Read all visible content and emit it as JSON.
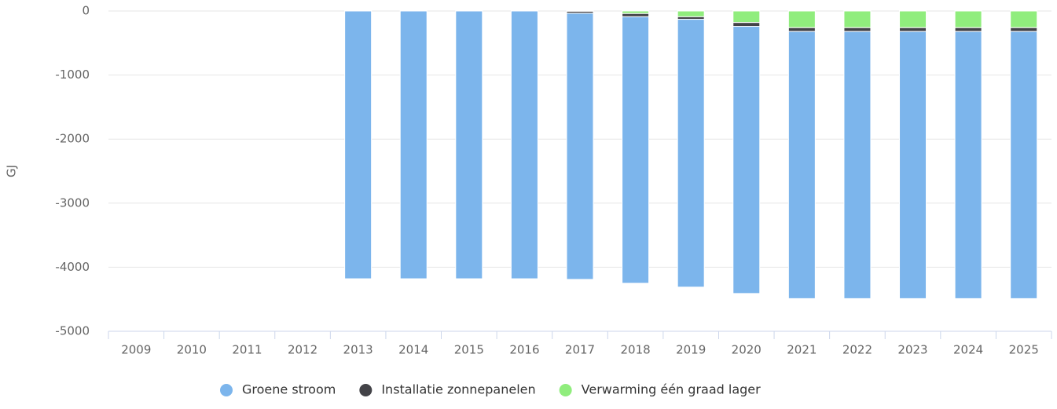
{
  "chart_data": {
    "type": "bar",
    "stacked": true,
    "y_label": "GJ",
    "categories": [
      "2009",
      "2010",
      "2011",
      "2012",
      "2013",
      "2014",
      "2015",
      "2016",
      "2017",
      "2018",
      "2019",
      "2020",
      "2021",
      "2022",
      "2023",
      "2024",
      "2025"
    ],
    "series": [
      {
        "name": "Verwarming één graad lager",
        "color": "#90ed7d",
        "values": [
          null,
          null,
          null,
          null,
          0,
          0,
          0,
          0,
          -5,
          -40,
          -90,
          -180,
          -260,
          -260,
          -260,
          -260,
          -260
        ]
      },
      {
        "name": "Installatie zonnepanelen",
        "color": "#434348",
        "values": [
          null,
          null,
          null,
          null,
          0,
          0,
          0,
          0,
          -30,
          -50,
          -40,
          -60,
          -60,
          -60,
          -60,
          -60,
          -60
        ]
      },
      {
        "name": "Groene stroom",
        "color": "#7cb5ec",
        "values": [
          null,
          null,
          null,
          null,
          -4180,
          -4180,
          -4180,
          -4180,
          -4155,
          -4160,
          -4180,
          -4170,
          -4170,
          -4170,
          -4170,
          -4170,
          -4170
        ]
      }
    ],
    "legend_order": [
      2,
      1,
      0
    ],
    "ylim": [
      -5000,
      0
    ],
    "yticks": [
      0,
      -1000,
      -2000,
      -3000,
      -4000,
      -5000
    ],
    "grid": true
  }
}
